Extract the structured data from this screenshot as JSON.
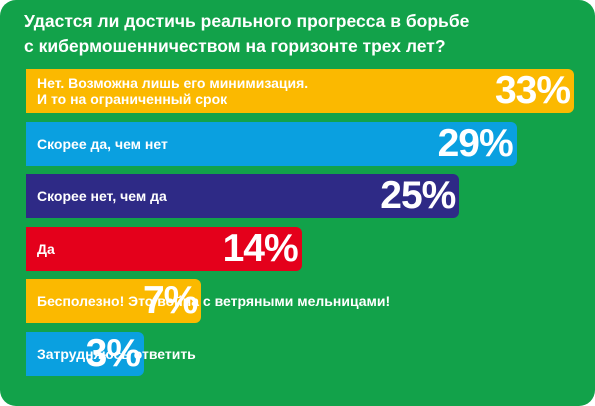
{
  "title_lines": [
    "Удастся ли достичь реального прогресса в борьбе",
    "с кибермошенничеством на горизонте трех лет?"
  ],
  "chart_data": {
    "type": "bar",
    "orientation": "horizontal",
    "title": "Удастся ли достичь реального прогресса в борьбе с кибермошенничеством на горизонте трех лет?",
    "categories": [
      [
        "Нет. Возможна лишь его минимизация.",
        "И то на ограниченный срок"
      ],
      [
        "Скорее да, чем нет"
      ],
      [
        "Скорее нет, чем да"
      ],
      [
        "Да"
      ],
      [
        "Бесполезно! Это война с ветряными мельницами!"
      ],
      [
        "Затрудняюсь ответить"
      ]
    ],
    "values": [
      33,
      29,
      25,
      14,
      7,
      3
    ],
    "value_labels": [
      "33%",
      "29%",
      "25%",
      "14%",
      "7%",
      "3%"
    ],
    "unit": "%",
    "bar_colors": [
      "#fbb900",
      "#0aa0e0",
      "#2e2a86",
      "#e4001b",
      "#fbb900",
      "#0aa0e0"
    ],
    "background_color": "#12a24a",
    "text_color": "#ffffff",
    "legend": "none",
    "grid": false
  }
}
